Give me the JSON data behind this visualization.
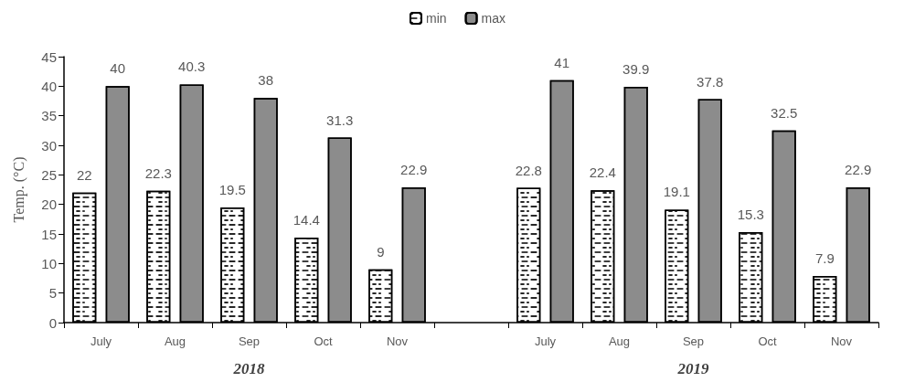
{
  "chart_data": {
    "type": "bar",
    "ylabel": "Temp. (°C)",
    "categories": [
      "July",
      "Aug",
      "Sep",
      "Oct",
      "Nov",
      null,
      "July",
      "Aug",
      "Sep",
      "Oct",
      "Nov"
    ],
    "series": [
      {
        "name": "min",
        "color": "#ffffff",
        "values": [
          22,
          22.3,
          19.5,
          14.4,
          9,
          null,
          22.8,
          22.4,
          19.1,
          15.3,
          7.9
        ]
      },
      {
        "name": "max",
        "color": "#8c8c8c",
        "values": [
          40,
          40.3,
          38,
          31.3,
          22.9,
          null,
          41,
          39.9,
          37.8,
          32.5,
          22.9
        ]
      }
    ],
    "ylim": [
      0,
      45
    ],
    "yticks": [
      0,
      5,
      10,
      15,
      20,
      25,
      30,
      35,
      40,
      45
    ],
    "data_labels": true,
    "grid": false,
    "legend": "top",
    "annotations": [
      "2018",
      "2019"
    ]
  }
}
